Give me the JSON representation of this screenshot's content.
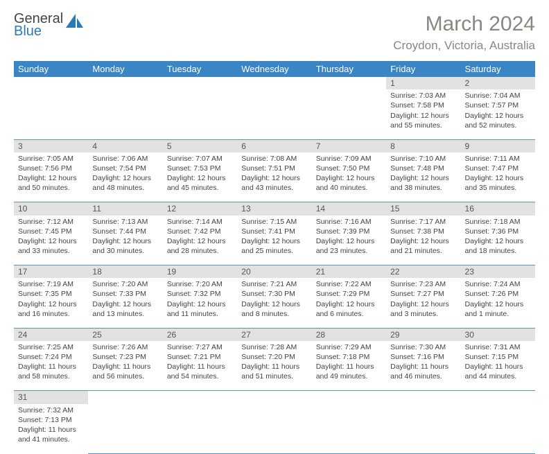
{
  "logo": {
    "text1": "General",
    "text2": "Blue"
  },
  "title": "March 2024",
  "location": "Croydon, Victoria, Australia",
  "colors": {
    "header_bg": "#3a86c5",
    "header_text": "#ffffff",
    "daynum_bg": "#e2e2e2",
    "cell_border": "#5a8fbf",
    "title_color": "#8a8780"
  },
  "dayHeaders": [
    "Sunday",
    "Monday",
    "Tuesday",
    "Wednesday",
    "Thursday",
    "Friday",
    "Saturday"
  ],
  "weeks": [
    [
      null,
      null,
      null,
      null,
      null,
      {
        "n": "1",
        "sr": "Sunrise: 7:03 AM",
        "ss": "Sunset: 7:58 PM",
        "d1": "Daylight: 12 hours",
        "d2": "and 55 minutes."
      },
      {
        "n": "2",
        "sr": "Sunrise: 7:04 AM",
        "ss": "Sunset: 7:57 PM",
        "d1": "Daylight: 12 hours",
        "d2": "and 52 minutes."
      }
    ],
    [
      {
        "n": "3",
        "sr": "Sunrise: 7:05 AM",
        "ss": "Sunset: 7:56 PM",
        "d1": "Daylight: 12 hours",
        "d2": "and 50 minutes."
      },
      {
        "n": "4",
        "sr": "Sunrise: 7:06 AM",
        "ss": "Sunset: 7:54 PM",
        "d1": "Daylight: 12 hours",
        "d2": "and 48 minutes."
      },
      {
        "n": "5",
        "sr": "Sunrise: 7:07 AM",
        "ss": "Sunset: 7:53 PM",
        "d1": "Daylight: 12 hours",
        "d2": "and 45 minutes."
      },
      {
        "n": "6",
        "sr": "Sunrise: 7:08 AM",
        "ss": "Sunset: 7:51 PM",
        "d1": "Daylight: 12 hours",
        "d2": "and 43 minutes."
      },
      {
        "n": "7",
        "sr": "Sunrise: 7:09 AM",
        "ss": "Sunset: 7:50 PM",
        "d1": "Daylight: 12 hours",
        "d2": "and 40 minutes."
      },
      {
        "n": "8",
        "sr": "Sunrise: 7:10 AM",
        "ss": "Sunset: 7:48 PM",
        "d1": "Daylight: 12 hours",
        "d2": "and 38 minutes."
      },
      {
        "n": "9",
        "sr": "Sunrise: 7:11 AM",
        "ss": "Sunset: 7:47 PM",
        "d1": "Daylight: 12 hours",
        "d2": "and 35 minutes."
      }
    ],
    [
      {
        "n": "10",
        "sr": "Sunrise: 7:12 AM",
        "ss": "Sunset: 7:45 PM",
        "d1": "Daylight: 12 hours",
        "d2": "and 33 minutes."
      },
      {
        "n": "11",
        "sr": "Sunrise: 7:13 AM",
        "ss": "Sunset: 7:44 PM",
        "d1": "Daylight: 12 hours",
        "d2": "and 30 minutes."
      },
      {
        "n": "12",
        "sr": "Sunrise: 7:14 AM",
        "ss": "Sunset: 7:42 PM",
        "d1": "Daylight: 12 hours",
        "d2": "and 28 minutes."
      },
      {
        "n": "13",
        "sr": "Sunrise: 7:15 AM",
        "ss": "Sunset: 7:41 PM",
        "d1": "Daylight: 12 hours",
        "d2": "and 25 minutes."
      },
      {
        "n": "14",
        "sr": "Sunrise: 7:16 AM",
        "ss": "Sunset: 7:39 PM",
        "d1": "Daylight: 12 hours",
        "d2": "and 23 minutes."
      },
      {
        "n": "15",
        "sr": "Sunrise: 7:17 AM",
        "ss": "Sunset: 7:38 PM",
        "d1": "Daylight: 12 hours",
        "d2": "and 21 minutes."
      },
      {
        "n": "16",
        "sr": "Sunrise: 7:18 AM",
        "ss": "Sunset: 7:36 PM",
        "d1": "Daylight: 12 hours",
        "d2": "and 18 minutes."
      }
    ],
    [
      {
        "n": "17",
        "sr": "Sunrise: 7:19 AM",
        "ss": "Sunset: 7:35 PM",
        "d1": "Daylight: 12 hours",
        "d2": "and 16 minutes."
      },
      {
        "n": "18",
        "sr": "Sunrise: 7:20 AM",
        "ss": "Sunset: 7:33 PM",
        "d1": "Daylight: 12 hours",
        "d2": "and 13 minutes."
      },
      {
        "n": "19",
        "sr": "Sunrise: 7:20 AM",
        "ss": "Sunset: 7:32 PM",
        "d1": "Daylight: 12 hours",
        "d2": "and 11 minutes."
      },
      {
        "n": "20",
        "sr": "Sunrise: 7:21 AM",
        "ss": "Sunset: 7:30 PM",
        "d1": "Daylight: 12 hours",
        "d2": "and 8 minutes."
      },
      {
        "n": "21",
        "sr": "Sunrise: 7:22 AM",
        "ss": "Sunset: 7:29 PM",
        "d1": "Daylight: 12 hours",
        "d2": "and 6 minutes."
      },
      {
        "n": "22",
        "sr": "Sunrise: 7:23 AM",
        "ss": "Sunset: 7:27 PM",
        "d1": "Daylight: 12 hours",
        "d2": "and 3 minutes."
      },
      {
        "n": "23",
        "sr": "Sunrise: 7:24 AM",
        "ss": "Sunset: 7:26 PM",
        "d1": "Daylight: 12 hours",
        "d2": "and 1 minute."
      }
    ],
    [
      {
        "n": "24",
        "sr": "Sunrise: 7:25 AM",
        "ss": "Sunset: 7:24 PM",
        "d1": "Daylight: 11 hours",
        "d2": "and 58 minutes."
      },
      {
        "n": "25",
        "sr": "Sunrise: 7:26 AM",
        "ss": "Sunset: 7:23 PM",
        "d1": "Daylight: 11 hours",
        "d2": "and 56 minutes."
      },
      {
        "n": "26",
        "sr": "Sunrise: 7:27 AM",
        "ss": "Sunset: 7:21 PM",
        "d1": "Daylight: 11 hours",
        "d2": "and 54 minutes."
      },
      {
        "n": "27",
        "sr": "Sunrise: 7:28 AM",
        "ss": "Sunset: 7:20 PM",
        "d1": "Daylight: 11 hours",
        "d2": "and 51 minutes."
      },
      {
        "n": "28",
        "sr": "Sunrise: 7:29 AM",
        "ss": "Sunset: 7:18 PM",
        "d1": "Daylight: 11 hours",
        "d2": "and 49 minutes."
      },
      {
        "n": "29",
        "sr": "Sunrise: 7:30 AM",
        "ss": "Sunset: 7:16 PM",
        "d1": "Daylight: 11 hours",
        "d2": "and 46 minutes."
      },
      {
        "n": "30",
        "sr": "Sunrise: 7:31 AM",
        "ss": "Sunset: 7:15 PM",
        "d1": "Daylight: 11 hours",
        "d2": "and 44 minutes."
      }
    ],
    [
      {
        "n": "31",
        "sr": "Sunrise: 7:32 AM",
        "ss": "Sunset: 7:13 PM",
        "d1": "Daylight: 11 hours",
        "d2": "and 41 minutes."
      },
      null,
      null,
      null,
      null,
      null,
      null
    ]
  ]
}
